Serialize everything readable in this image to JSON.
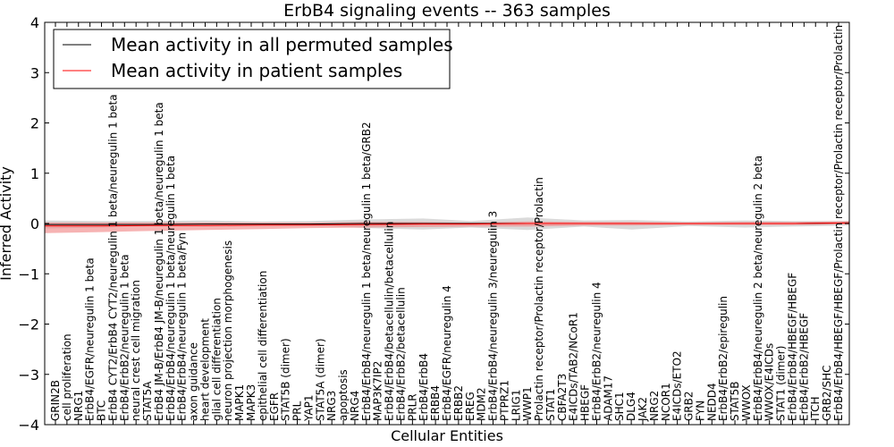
{
  "chart_data": {
    "type": "line",
    "title": "ErbB4 signaling events -- 363 samples",
    "xlabel": "Cellular Entities",
    "ylabel": "Inferred Activity",
    "ylim": [
      -4,
      4
    ],
    "yticks": [
      -4,
      -3,
      -2,
      -1,
      0,
      1,
      2,
      3,
      4
    ],
    "ytick_labels": [
      "−4",
      "−3",
      "−2",
      "−1",
      "0",
      "1",
      "2",
      "3",
      "4"
    ],
    "legend_position": "top-left",
    "categories": [
      "GRIN2B",
      "cell proliferation",
      "NRG1",
      "ErbB4/EGFR/neuregulin 1 beta",
      "BTC",
      "ErbB4 CYT2/ErbB4 CYT2/neuregulin 1 beta/neuregulin 1 beta",
      "ErbB4/ErbB2/neuregulin 1 beta",
      "neural crest cell migration",
      "STAT5A",
      "ErbB4 JM-B/ErbB4 JM-B/neuregulin 1 beta/neuregulin 1 beta",
      "ErbB4/ErbB4/neuregulin 1 beta/neuregulin 1 beta",
      "ErbB4/ErbB4/neuregulin 1 beta/Fyn",
      "axon guidance",
      "heart development",
      "glial cell differentiation",
      "neuron projection morphogenesis",
      "MAPK1",
      "MAPK3",
      "epithelial cell differentiation",
      "EGFR",
      "STAT5B (dimer)",
      "PRL",
      "YAP1",
      "STAT5A (dimer)",
      "NRG3",
      "apoptosis",
      "NRG4",
      "ErbB4/ErbB4/neuregulin 1 beta/neuregulin 1 beta/GRB2",
      "MAP3K7IP2",
      "ErbB4/ErbB4/betacellulin/betacellulin",
      "ErbB4/ErbB2/betacellulin",
      "PRLR",
      "ErbB4/ErbB4",
      "ERBB4",
      "ErbB4/EGFR/neuregulin 4",
      "ERBB2",
      "EREG",
      "MDM2",
      "ErbB4/ErbB4/neuregulin 3/neuregulin 3",
      "PTPRZ1",
      "LRIG1",
      "WWP1",
      "Prolactin receptor/Prolactin receptor/Prolactin",
      "STAT1",
      "CBFA2T3",
      "E4ICDs/TAB2/NCoR1",
      "HBEGF",
      "ErbB4/ErbB2/neuregulin 4",
      "ADAM17",
      "SHC1",
      "DLG4",
      "JAK2",
      "NRG2",
      "NCOR1",
      "E4ICDs/ETO2",
      "GRB2",
      "FYN",
      "NEDD4",
      "ErbB4/ErbB2/epiregulin",
      "STAT5B",
      "WWOX",
      "ErbB4/ErbB4/neuregulin 2 beta/neuregulin 2 beta",
      "WWOX/E4ICDs",
      "STAT1 (dimer)",
      "ErbB4/ErbB4/HBEGF/HBEGF",
      "ErbB4/ErbB2/HBEGF",
      "ITCH",
      "GRB2/SHC",
      "ErbB4/ErbB4/HBEGF/HBEGF/Prolactin receptor/Prolactin receptor/Prolactin"
    ],
    "x": [
      0.0,
      0.07,
      0.13,
      0.2,
      0.27,
      0.33,
      0.4,
      0.47,
      0.53,
      0.6,
      0.67,
      0.73,
      0.8,
      0.87,
      0.93,
      1.0
    ],
    "series": [
      {
        "name": "Mean activity in all permuted samples",
        "color": "#000000",
        "values": [
          -0.02,
          -0.02,
          -0.02,
          -0.01,
          -0.01,
          -0.01,
          0.0,
          0.0,
          0.0,
          0.0,
          0.0,
          0.0,
          0.0,
          0.0,
          0.0,
          0.01
        ],
        "band": {
          "color": "#bbbbbb",
          "upper": [
            0.06,
            0.05,
            0.05,
            0.06,
            0.04,
            0.05,
            0.08,
            0.1,
            0.05,
            0.12,
            0.06,
            0.07,
            0.04,
            0.06,
            0.05,
            0.05
          ],
          "lower": [
            -0.1,
            -0.08,
            -0.06,
            -0.06,
            -0.05,
            -0.04,
            -0.09,
            -0.12,
            -0.08,
            -0.13,
            -0.06,
            -0.12,
            -0.05,
            -0.08,
            -0.06,
            -0.04
          ]
        }
      },
      {
        "name": "Mean activity in patient samples",
        "color": "#ff0000",
        "values": [
          -0.05,
          -0.05,
          -0.04,
          -0.04,
          -0.03,
          -0.03,
          -0.02,
          -0.01,
          -0.01,
          0.0,
          0.0,
          0.0,
          0.0,
          0.0,
          0.0,
          0.01
        ],
        "band": {
          "color": "#f08080",
          "upper": [
            0.02,
            0.02,
            0.02,
            0.02,
            0.02,
            0.02,
            0.03,
            0.03,
            0.02,
            0.04,
            0.03,
            0.03,
            0.02,
            0.03,
            0.03,
            0.05
          ],
          "lower": [
            -0.19,
            -0.17,
            -0.15,
            -0.13,
            -0.11,
            -0.09,
            -0.08,
            -0.07,
            -0.06,
            -0.06,
            -0.04,
            -0.04,
            -0.03,
            -0.03,
            -0.03,
            -0.02
          ]
        }
      }
    ]
  }
}
